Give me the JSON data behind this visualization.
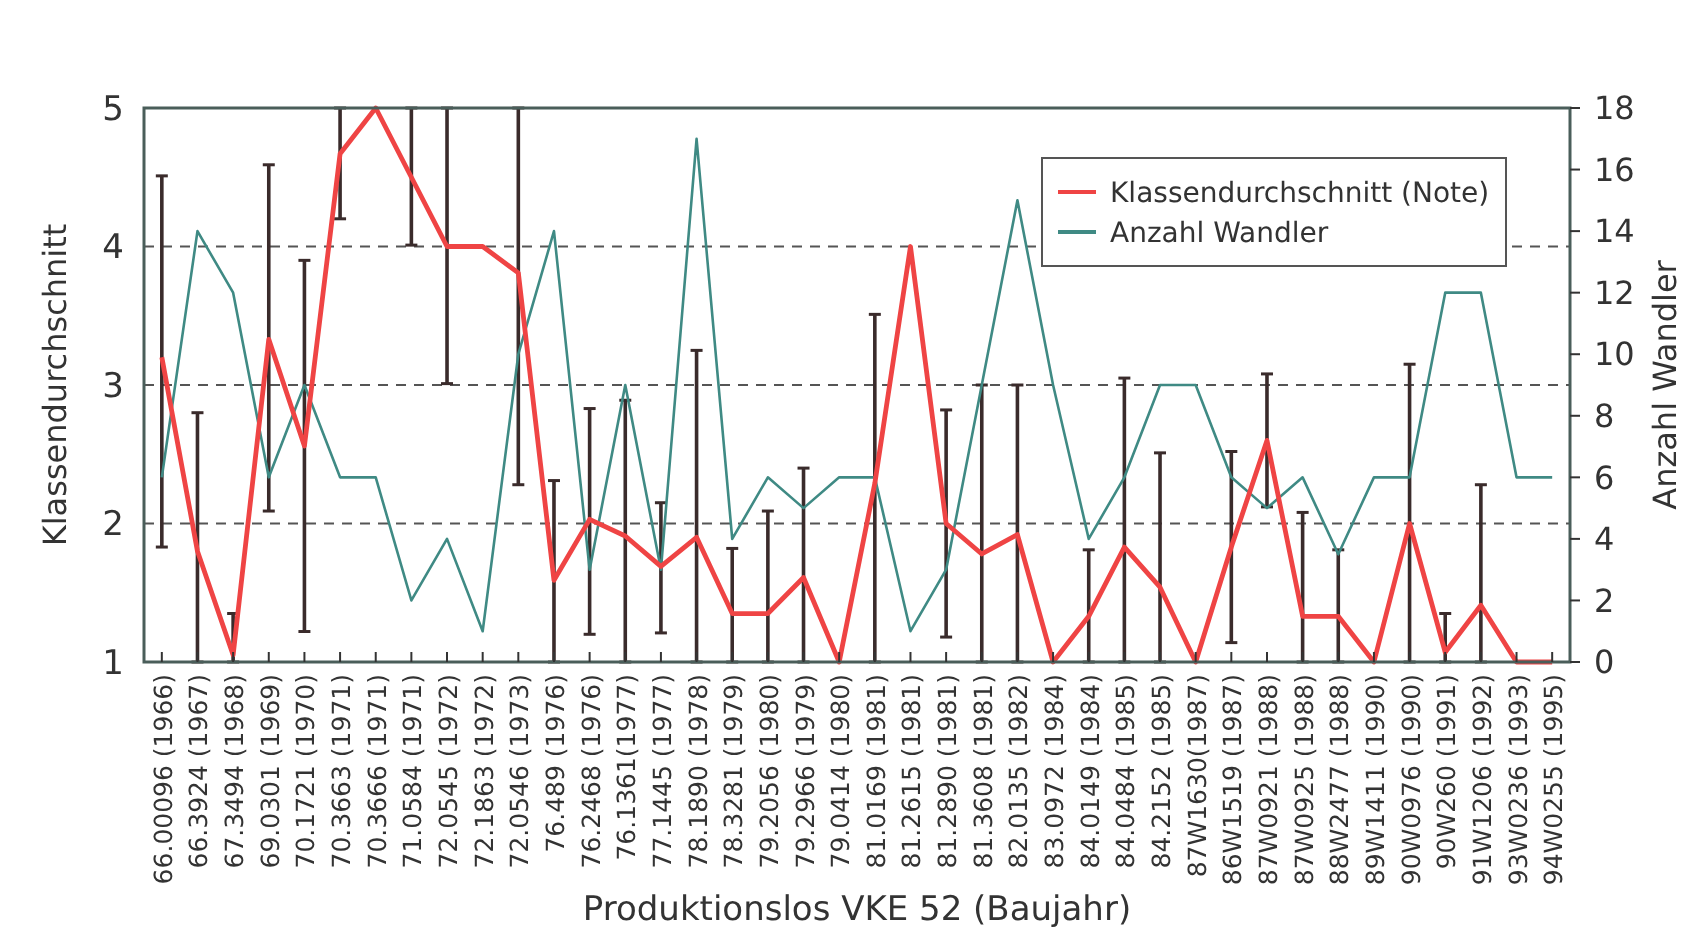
{
  "chart_data": {
    "type": "line",
    "xlabel": "Produktionslos VKE 52 (Baujahr)",
    "ylabel": "Klassendurchschnitt",
    "y2label": "Anzahl Wandler",
    "categories": [
      "66.00096 (1966)",
      "66.3924 (1967)",
      "67.3494 (1968)",
      "69.0301 (1969)",
      "70.1721 (1970)",
      "70.3663 (1971)",
      "70.3666 (1971)",
      "71.0584 (1971)",
      "72.0545 (1972)",
      "72.1863 (1972)",
      "72.0546 (1973)",
      "76.489 (1976)",
      "76.2468 (1976)",
      "76.1361(1977)",
      "77.1445 (1977)",
      "78.1890 (1978)",
      "78.3281 (1979)",
      "79.2056 (1980)",
      "79.2966 (1979)",
      "79.0414 (1980)",
      "81.0169 (1981)",
      "81.2615 (1981)",
      "81.2890 (1981)",
      "81.3608 (1981)",
      "82.0135 (1982)",
      "83.0972 (1984)",
      "84.0149 (1984)",
      "84.0484 (1985)",
      "84.2152 (1985)",
      "87W1630(1987)",
      "86W1519 (1987)",
      "87W0921 (1988)",
      "87W0925 (1988)",
      "88W2477 (1988)",
      "89W1411 (1990)",
      "90W0976 (1990)",
      "90W260 (1991)",
      "91W1206 (1992)",
      "93W0236 (1993)",
      "94W0255 (1995)"
    ],
    "series": [
      {
        "name": "Klassendurchschnitt (Note)",
        "color": "#ef4444",
        "values": [
          3.2,
          1.8,
          1.05,
          3.33,
          2.56,
          4.67,
          5,
          4.5,
          4,
          4,
          3.81,
          1.59,
          2.03,
          1.91,
          1.69,
          1.9,
          1.35,
          1.35,
          1.61,
          1,
          2.29,
          4,
          2,
          1.78,
          1.92,
          1,
          1.33,
          1.83,
          1.54,
          1,
          1.83,
          2.6,
          1.33,
          1.33,
          1,
          2,
          1.07,
          1.41,
          1,
          1
        ],
        "errors": [
          [
            1.83,
            4.51
          ],
          [
            1,
            2.8
          ],
          [
            1,
            1.35
          ],
          [
            2.09,
            4.59
          ],
          [
            1.22,
            3.9
          ],
          [
            4.2,
            5
          ],
          null,
          [
            4.01,
            5
          ],
          [
            3.01,
            5
          ],
          null,
          [
            2.28,
            5
          ],
          [
            1,
            2.31
          ],
          [
            1.2,
            2.83
          ],
          [
            1,
            2.89
          ],
          [
            1.21,
            2.15
          ],
          [
            1,
            3.25
          ],
          [
            1,
            1.82
          ],
          [
            1,
            2.09
          ],
          [
            1,
            2.4
          ],
          null,
          [
            1,
            3.51
          ],
          null,
          [
            1.18,
            2.82
          ],
          [
            1,
            3
          ],
          [
            1,
            3
          ],
          null,
          [
            1,
            1.81
          ],
          [
            1,
            3.05
          ],
          [
            1,
            2.51
          ],
          null,
          [
            1.14,
            2.52
          ],
          [
            2.12,
            3.08
          ],
          [
            1,
            2.08
          ],
          [
            1,
            1.81
          ],
          null,
          [
            1,
            3.15
          ],
          [
            1,
            1.35
          ],
          [
            1,
            2.28
          ],
          null,
          null
        ]
      },
      {
        "name": "Anzahl Wandler",
        "color": "#3f8a84",
        "axis": "y2",
        "values": [
          6,
          14,
          12,
          6,
          9,
          6,
          6,
          2,
          4,
          1,
          10,
          14,
          3,
          9,
          3,
          17,
          4,
          6,
          5,
          6,
          6,
          1,
          3,
          9,
          15,
          9,
          4,
          6,
          9,
          9,
          6,
          5,
          6,
          3.5,
          6,
          6,
          12,
          12,
          6,
          6
        ]
      }
    ],
    "ylim": [
      1,
      5
    ],
    "yticks": [
      1,
      2,
      3,
      4,
      5
    ],
    "y2lim": [
      0,
      18
    ],
    "y2ticks": [
      0,
      2,
      4,
      6,
      8,
      10,
      12,
      14,
      16,
      18
    ],
    "grid": "y",
    "legend": "top right",
    "marker": "none",
    "line_style": "solid"
  }
}
